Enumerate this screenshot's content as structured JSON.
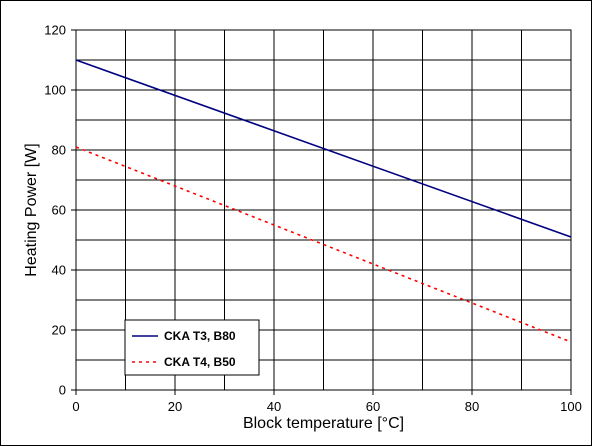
{
  "chart_data": {
    "type": "line",
    "title": "",
    "xlabel": "Block temperature [°C]",
    "ylabel": "Heating Power [W]",
    "xlim": [
      0,
      100
    ],
    "ylim": [
      0,
      120
    ],
    "x_ticks": [
      0,
      20,
      40,
      60,
      80,
      100
    ],
    "y_ticks": [
      0,
      20,
      40,
      60,
      80,
      100,
      120
    ],
    "x_grid_step": 10,
    "y_grid_step": 10,
    "grid": true,
    "legend_position": "bottom-left",
    "series": [
      {
        "name": "CKA T3, B80",
        "color": "#000080",
        "style": "solid",
        "x": [
          0,
          100
        ],
        "y": [
          110,
          51
        ]
      },
      {
        "name": "CKA T4, B50",
        "color": "#ff0000",
        "style": "dotted",
        "x": [
          0,
          100
        ],
        "y": [
          81,
          16
        ]
      }
    ]
  }
}
